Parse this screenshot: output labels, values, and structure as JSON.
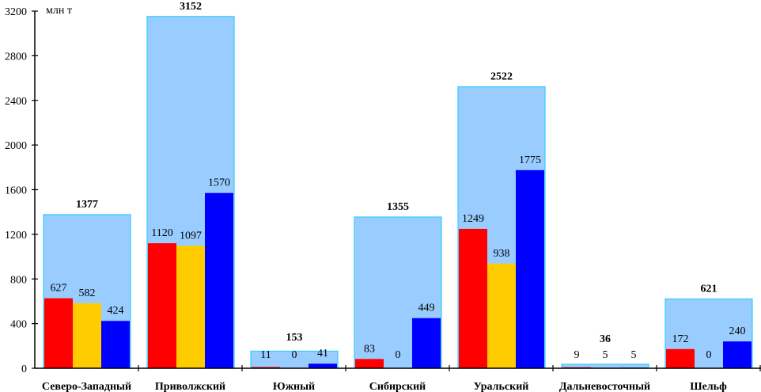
{
  "chart_data": {
    "type": "bar",
    "title": "",
    "ylabel": "млн т",
    "xlabel": "",
    "ylim": [
      0,
      3200
    ],
    "yticks": [
      0,
      400,
      800,
      1200,
      1600,
      2000,
      2400,
      2800,
      3200
    ],
    "grid": false,
    "categories": [
      "Северо-Западный",
      "Приволжский",
      "Южный",
      "Сибирский",
      "Уральский",
      "Дальневосточный",
      "Шельф"
    ],
    "totals": {
      "name": "total",
      "color": "#99ccff",
      "values": [
        1377,
        3152,
        153,
        1355,
        2522,
        36,
        621
      ]
    },
    "series": [
      {
        "name": "series-red",
        "color": "#ff0000",
        "values": [
          627,
          1120,
          11,
          83,
          1249,
          9,
          172
        ]
      },
      {
        "name": "series-yellow",
        "color": "#ffcc00",
        "values": [
          582,
          1097,
          0,
          0,
          938,
          5,
          0
        ]
      },
      {
        "name": "series-blue",
        "color": "#0000ff",
        "values": [
          424,
          1570,
          41,
          449,
          1775,
          5,
          240
        ]
      }
    ]
  }
}
